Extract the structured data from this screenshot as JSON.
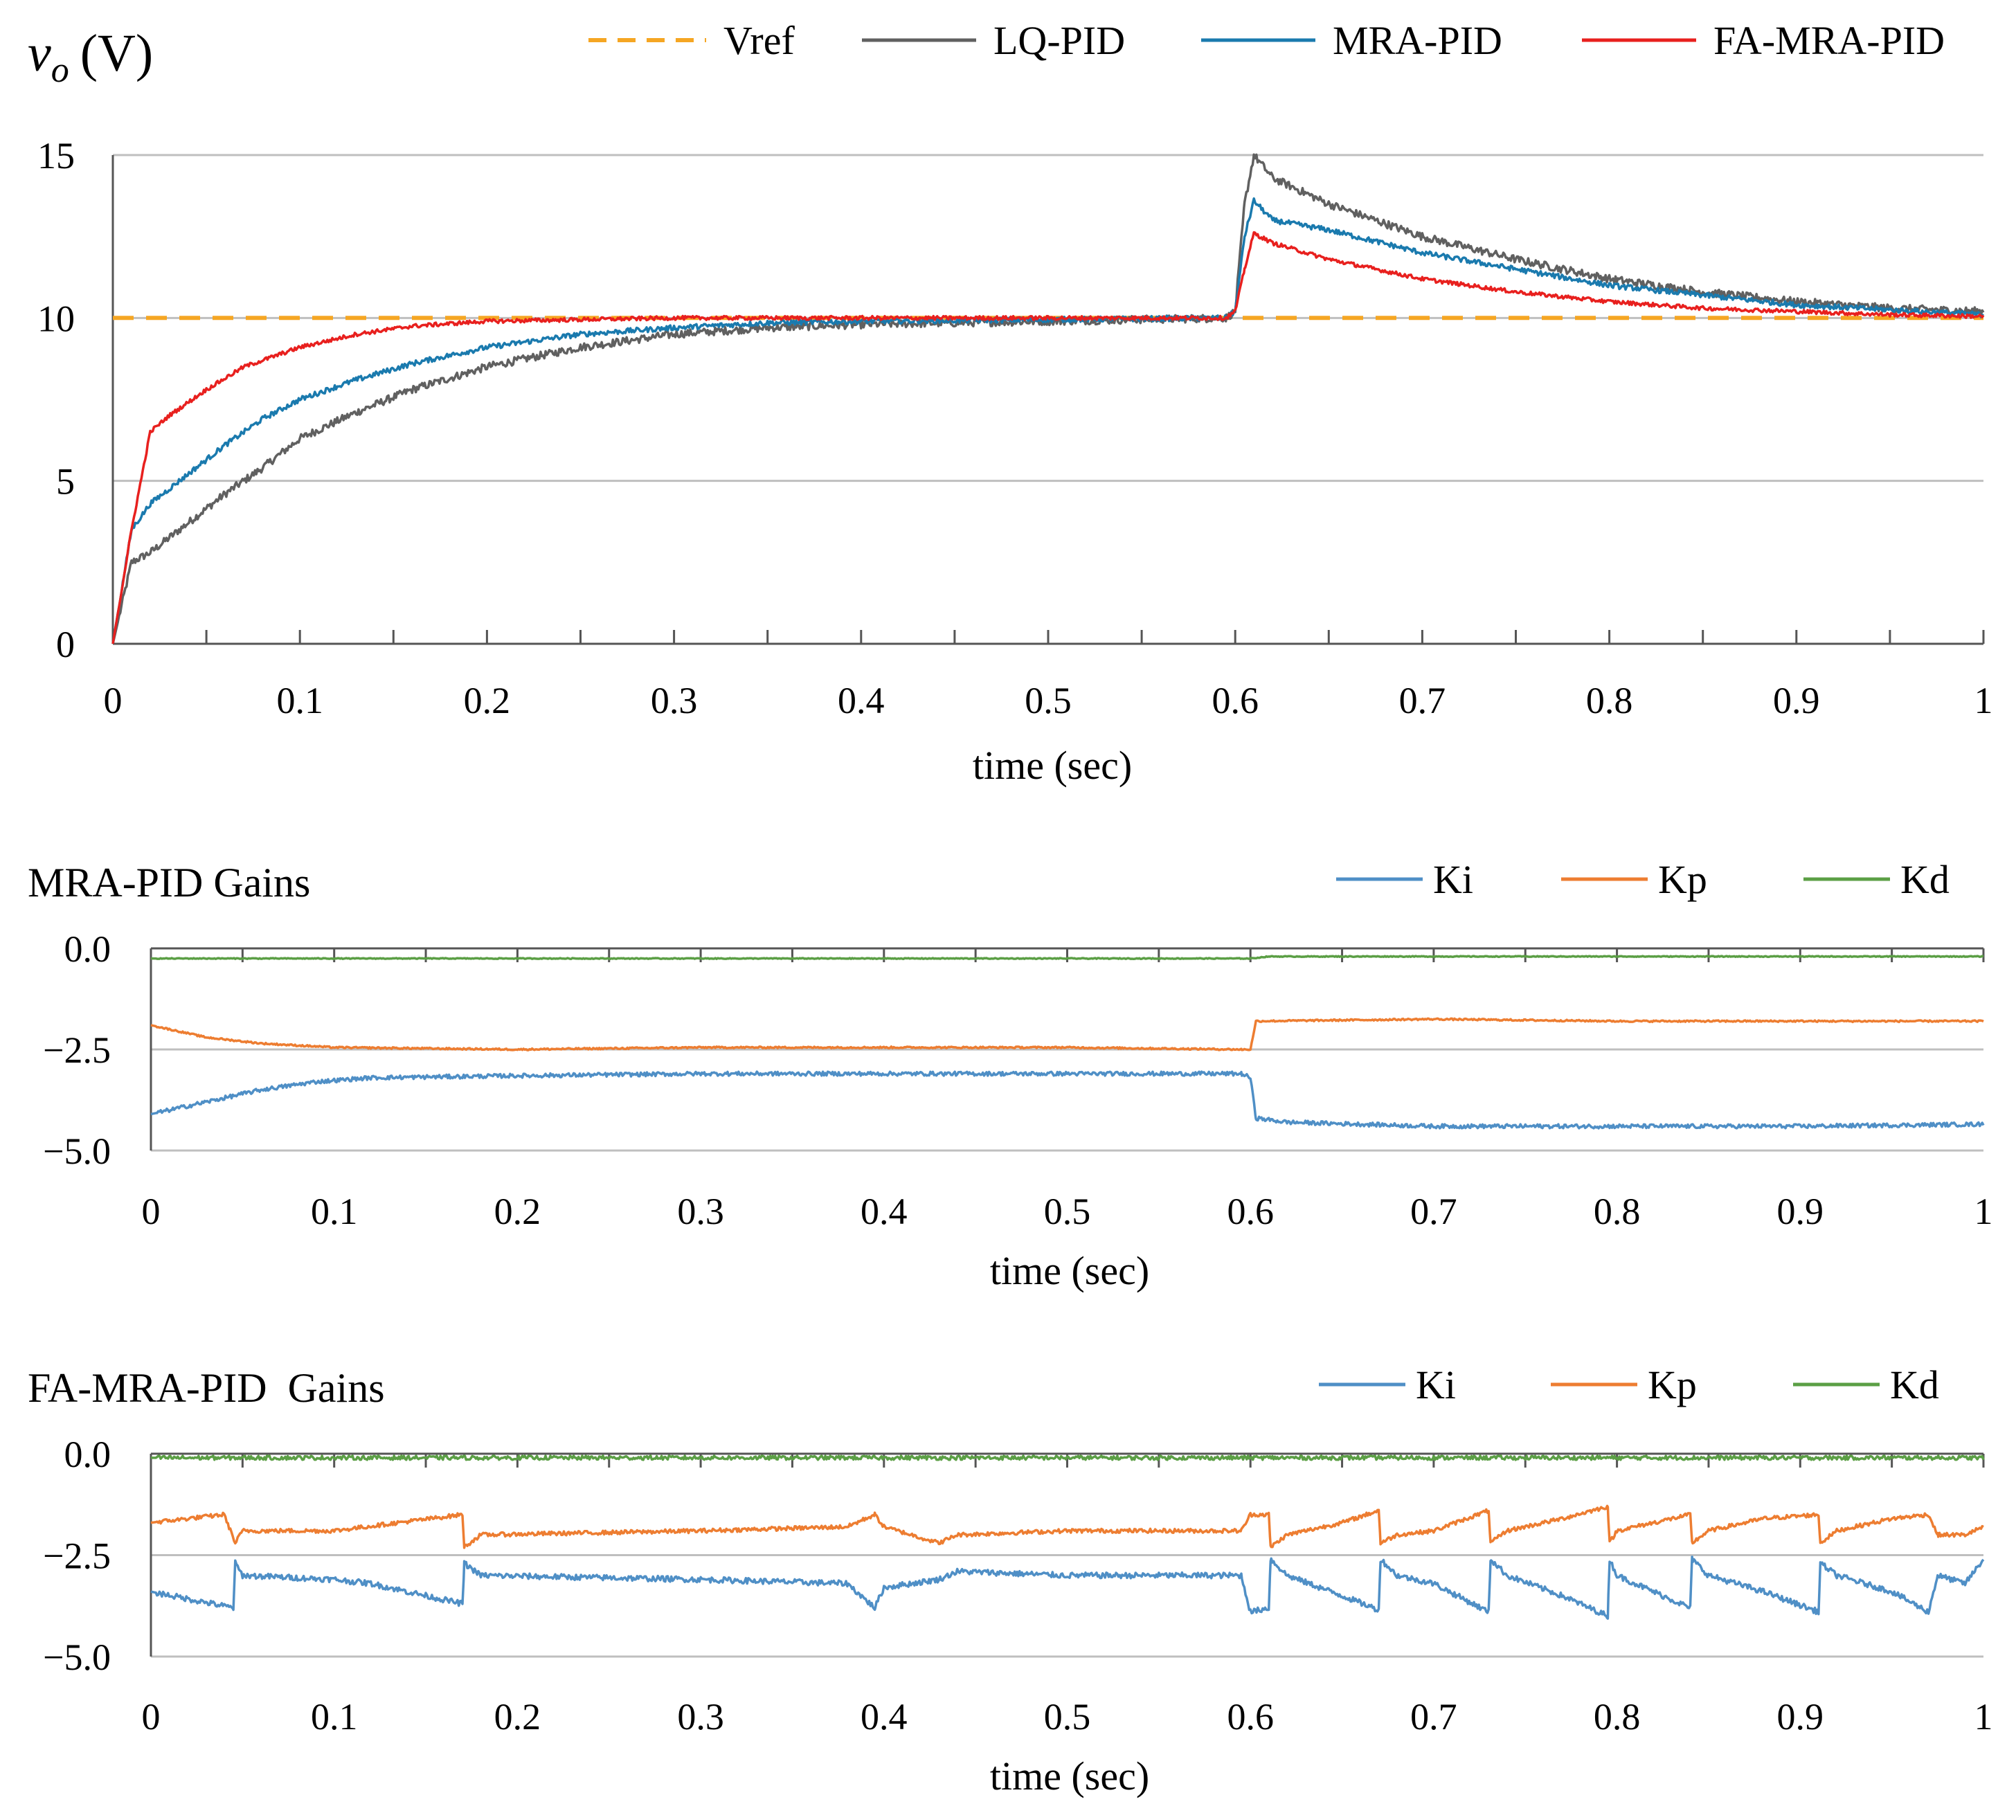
{
  "chart_data": [
    {
      "type": "line",
      "title": "",
      "ylabel_var": "v",
      "ylabel_sub": "o",
      "ylabel_unit": "(V)",
      "xlabel": "time (sec)",
      "xlim": [
        0,
        1
      ],
      "ylim": [
        0,
        15
      ],
      "x_ticks": [
        0,
        0.1,
        0.2,
        0.3,
        0.4,
        0.5,
        0.6,
        0.7,
        0.8,
        0.9,
        1
      ],
      "x_tick_labels": [
        "0",
        "0.1",
        "0.2",
        "0.3",
        "0.4",
        "0.5",
        "0.6",
        "0.7",
        "0.8",
        "0.9",
        "1"
      ],
      "y_ticks": [
        0,
        5,
        10,
        15
      ],
      "y_tick_labels": [
        "0",
        "5",
        "10",
        "15"
      ],
      "grid": "horizontal",
      "legend_position": "top",
      "series": [
        {
          "name": "Vref",
          "color": "#F5A623",
          "dash": true,
          "noise": 0,
          "points": [
            [
              0,
              10
            ],
            [
              1,
              10
            ]
          ]
        },
        {
          "name": "LQ-PID",
          "color": "#606060",
          "noise": 0.12,
          "points": [
            [
              0,
              0
            ],
            [
              0.01,
              2.5
            ],
            [
              0.02,
              2.8
            ],
            [
              0.04,
              3.7
            ],
            [
              0.06,
              4.6
            ],
            [
              0.08,
              5.4
            ],
            [
              0.1,
              6.3
            ],
            [
              0.13,
              7.1
            ],
            [
              0.16,
              7.8
            ],
            [
              0.2,
              8.5
            ],
            [
              0.25,
              9.1
            ],
            [
              0.3,
              9.5
            ],
            [
              0.35,
              9.7
            ],
            [
              0.4,
              9.8
            ],
            [
              0.5,
              9.9
            ],
            [
              0.595,
              10.0
            ],
            [
              0.6,
              10.2
            ],
            [
              0.605,
              13.5
            ],
            [
              0.61,
              15.0
            ],
            [
              0.62,
              14.3
            ],
            [
              0.65,
              13.5
            ],
            [
              0.7,
              12.5
            ],
            [
              0.75,
              11.8
            ],
            [
              0.8,
              11.2
            ],
            [
              0.85,
              10.8
            ],
            [
              0.9,
              10.5
            ],
            [
              0.95,
              10.3
            ],
            [
              1,
              10.2
            ]
          ]
        },
        {
          "name": "MRA-PID",
          "color": "#1A7AAE",
          "noise": 0.08,
          "points": [
            [
              0,
              0
            ],
            [
              0.01,
              3.5
            ],
            [
              0.02,
              4.3
            ],
            [
              0.04,
              5.2
            ],
            [
              0.06,
              6.1
            ],
            [
              0.08,
              6.9
            ],
            [
              0.1,
              7.5
            ],
            [
              0.13,
              8.1
            ],
            [
              0.16,
              8.6
            ],
            [
              0.2,
              9.1
            ],
            [
              0.25,
              9.5
            ],
            [
              0.3,
              9.7
            ],
            [
              0.35,
              9.85
            ],
            [
              0.4,
              9.9
            ],
            [
              0.5,
              9.95
            ],
            [
              0.595,
              10.0
            ],
            [
              0.6,
              10.2
            ],
            [
              0.605,
              12.5
            ],
            [
              0.61,
              13.6
            ],
            [
              0.62,
              13.0
            ],
            [
              0.65,
              12.7
            ],
            [
              0.7,
              12.0
            ],
            [
              0.75,
              11.5
            ],
            [
              0.8,
              11.0
            ],
            [
              0.85,
              10.7
            ],
            [
              0.9,
              10.4
            ],
            [
              0.95,
              10.25
            ],
            [
              1,
              10.1
            ]
          ]
        },
        {
          "name": "FA-MRA-PID",
          "color": "#E8201E",
          "noise": 0.06,
          "points": [
            [
              0,
              0
            ],
            [
              0.01,
              3.5
            ],
            [
              0.02,
              6.5
            ],
            [
              0.03,
              7.0
            ],
            [
              0.05,
              7.8
            ],
            [
              0.07,
              8.5
            ],
            [
              0.1,
              9.1
            ],
            [
              0.13,
              9.5
            ],
            [
              0.16,
              9.75
            ],
            [
              0.2,
              9.9
            ],
            [
              0.3,
              10.0
            ],
            [
              0.4,
              10.0
            ],
            [
              0.5,
              10.0
            ],
            [
              0.595,
              10.0
            ],
            [
              0.6,
              10.2
            ],
            [
              0.605,
              11.5
            ],
            [
              0.61,
              12.6
            ],
            [
              0.62,
              12.3
            ],
            [
              0.65,
              11.8
            ],
            [
              0.7,
              11.2
            ],
            [
              0.75,
              10.8
            ],
            [
              0.8,
              10.5
            ],
            [
              0.85,
              10.3
            ],
            [
              0.9,
              10.2
            ],
            [
              0.95,
              10.1
            ],
            [
              1,
              10.05
            ]
          ]
        }
      ]
    },
    {
      "type": "line",
      "title": "MRA-PID Gains",
      "xlabel": "time (sec)",
      "xlim": [
        0,
        1
      ],
      "ylim": [
        -5.0,
        0.0
      ],
      "x_ticks": [
        0,
        0.1,
        0.2,
        0.3,
        0.4,
        0.5,
        0.6,
        0.7,
        0.8,
        0.9,
        1
      ],
      "x_tick_labels": [
        "0",
        "0.1",
        "0.2",
        "0.3",
        "0.4",
        "0.5",
        "0.6",
        "0.7",
        "0.8",
        "0.9",
        "1"
      ],
      "y_ticks": [
        0.0,
        -2.5,
        -5.0
      ],
      "y_tick_labels": [
        "0.0",
        "−2.5",
        "−5.0"
      ],
      "grid": "horizontal",
      "legend_position": "top-right",
      "series": [
        {
          "name": "Ki",
          "color": "#4F8FC6",
          "noise": 0.05,
          "points": [
            [
              0,
              -4.1
            ],
            [
              0.03,
              -3.8
            ],
            [
              0.06,
              -3.5
            ],
            [
              0.09,
              -3.3
            ],
            [
              0.12,
              -3.2
            ],
            [
              0.2,
              -3.15
            ],
            [
              0.3,
              -3.1
            ],
            [
              0.4,
              -3.1
            ],
            [
              0.5,
              -3.1
            ],
            [
              0.595,
              -3.1
            ],
            [
              0.6,
              -3.2
            ],
            [
              0.603,
              -4.2
            ],
            [
              0.62,
              -4.3
            ],
            [
              0.7,
              -4.4
            ],
            [
              0.8,
              -4.4
            ],
            [
              0.9,
              -4.4
            ],
            [
              1,
              -4.35
            ]
          ]
        },
        {
          "name": "Kp",
          "color": "#ED7D31",
          "noise": 0.02,
          "points": [
            [
              0,
              -1.9
            ],
            [
              0.03,
              -2.2
            ],
            [
              0.06,
              -2.35
            ],
            [
              0.1,
              -2.45
            ],
            [
              0.2,
              -2.5
            ],
            [
              0.3,
              -2.45
            ],
            [
              0.4,
              -2.45
            ],
            [
              0.5,
              -2.45
            ],
            [
              0.595,
              -2.5
            ],
            [
              0.6,
              -2.5
            ],
            [
              0.603,
              -1.8
            ],
            [
              0.7,
              -1.75
            ],
            [
              0.8,
              -1.8
            ],
            [
              0.9,
              -1.8
            ],
            [
              1,
              -1.8
            ]
          ]
        },
        {
          "name": "Kd",
          "color": "#5B9F45",
          "noise": 0.01,
          "points": [
            [
              0,
              -0.25
            ],
            [
              0.6,
              -0.25
            ],
            [
              0.61,
              -0.2
            ],
            [
              1,
              -0.2
            ]
          ]
        }
      ]
    },
    {
      "type": "line",
      "title": "FA-MRA-PID  Gains",
      "xlabel": "time (sec)",
      "xlim": [
        0,
        1
      ],
      "ylim": [
        -5.0,
        0.0
      ],
      "x_ticks": [
        0,
        0.1,
        0.2,
        0.3,
        0.4,
        0.5,
        0.6,
        0.7,
        0.8,
        0.9,
        1
      ],
      "x_tick_labels": [
        "0",
        "0.1",
        "0.2",
        "0.3",
        "0.4",
        "0.5",
        "0.6",
        "0.7",
        "0.8",
        "0.9",
        "1"
      ],
      "y_ticks": [
        0.0,
        -2.5,
        -5.0
      ],
      "y_tick_labels": [
        "0.0",
        "−2.5",
        "−5.0"
      ],
      "grid": "horizontal",
      "legend_position": "top-right",
      "series": [
        {
          "name": "Ki",
          "color": "#4F8FC6",
          "noise": 0.07,
          "points": [
            [
              0,
              -3.4
            ],
            [
              0.045,
              -3.8
            ],
            [
              0.046,
              -2.7
            ],
            [
              0.05,
              -3.0
            ],
            [
              0.1,
              -3.1
            ],
            [
              0.12,
              -3.2
            ],
            [
              0.17,
              -3.7
            ],
            [
              0.171,
              -2.7
            ],
            [
              0.18,
              -3.0
            ],
            [
              0.3,
              -3.1
            ],
            [
              0.38,
              -3.2
            ],
            [
              0.395,
              -3.8
            ],
            [
              0.4,
              -3.3
            ],
            [
              0.43,
              -3.1
            ],
            [
              0.44,
              -2.9
            ],
            [
              0.5,
              -3.0
            ],
            [
              0.595,
              -3.0
            ],
            [
              0.6,
              -3.9
            ],
            [
              0.61,
              -3.8
            ],
            [
              0.611,
              -2.6
            ],
            [
              0.62,
              -3.0
            ],
            [
              0.65,
              -3.5
            ],
            [
              0.67,
              -3.85
            ],
            [
              0.671,
              -2.6
            ],
            [
              0.68,
              -3.0
            ],
            [
              0.7,
              -3.2
            ],
            [
              0.73,
              -3.9
            ],
            [
              0.731,
              -2.6
            ],
            [
              0.74,
              -3.0
            ],
            [
              0.77,
              -3.5
            ],
            [
              0.795,
              -4.0
            ],
            [
              0.796,
              -2.6
            ],
            [
              0.8,
              -3.0
            ],
            [
              0.84,
              -3.8
            ],
            [
              0.841,
              -2.6
            ],
            [
              0.85,
              -3.0
            ],
            [
              0.88,
              -3.4
            ],
            [
              0.91,
              -3.9
            ],
            [
              0.911,
              -2.7
            ],
            [
              0.92,
              -3.0
            ],
            [
              0.95,
              -3.4
            ],
            [
              0.97,
              -3.9
            ],
            [
              0.975,
              -3.0
            ],
            [
              0.99,
              -3.2
            ],
            [
              1,
              -2.6
            ]
          ]
        },
        {
          "name": "Kp",
          "color": "#ED7D31",
          "noise": 0.05,
          "points": [
            [
              0,
              -1.7
            ],
            [
              0.04,
              -1.5
            ],
            [
              0.046,
              -2.2
            ],
            [
              0.05,
              -1.9
            ],
            [
              0.1,
              -1.9
            ],
            [
              0.17,
              -1.5
            ],
            [
              0.171,
              -2.3
            ],
            [
              0.18,
              -2.0
            ],
            [
              0.3,
              -1.9
            ],
            [
              0.38,
              -1.8
            ],
            [
              0.395,
              -1.5
            ],
            [
              0.4,
              -1.8
            ],
            [
              0.43,
              -2.2
            ],
            [
              0.44,
              -2.0
            ],
            [
              0.5,
              -1.9
            ],
            [
              0.595,
              -1.9
            ],
            [
              0.6,
              -1.5
            ],
            [
              0.61,
              -1.5
            ],
            [
              0.611,
              -2.3
            ],
            [
              0.62,
              -2.0
            ],
            [
              0.65,
              -1.7
            ],
            [
              0.67,
              -1.4
            ],
            [
              0.671,
              -2.2
            ],
            [
              0.68,
              -2.0
            ],
            [
              0.7,
              -1.9
            ],
            [
              0.73,
              -1.4
            ],
            [
              0.731,
              -2.2
            ],
            [
              0.74,
              -1.9
            ],
            [
              0.77,
              -1.6
            ],
            [
              0.795,
              -1.3
            ],
            [
              0.796,
              -2.2
            ],
            [
              0.8,
              -1.9
            ],
            [
              0.84,
              -1.5
            ],
            [
              0.841,
              -2.2
            ],
            [
              0.85,
              -1.9
            ],
            [
              0.88,
              -1.6
            ],
            [
              0.91,
              -1.5
            ],
            [
              0.911,
              -2.2
            ],
            [
              0.92,
              -1.9
            ],
            [
              0.95,
              -1.6
            ],
            [
              0.97,
              -1.5
            ],
            [
              0.975,
              -2.0
            ],
            [
              0.99,
              -2.0
            ],
            [
              1,
              -1.8
            ]
          ]
        },
        {
          "name": "Kd",
          "color": "#5B9F45",
          "noise": 0.05,
          "points": [
            [
              0,
              -0.1
            ],
            [
              1,
              -0.1
            ]
          ]
        }
      ]
    }
  ]
}
